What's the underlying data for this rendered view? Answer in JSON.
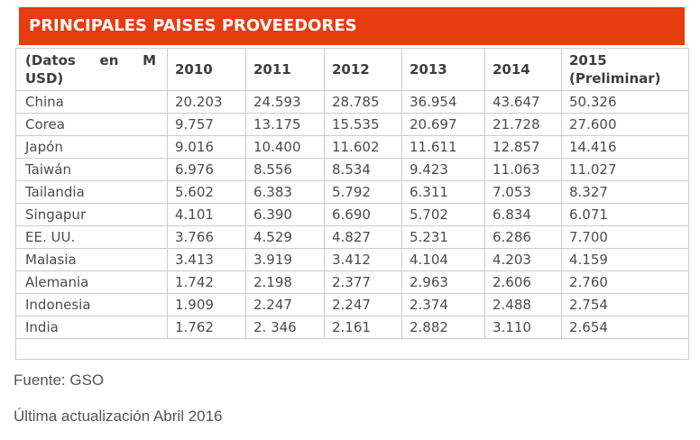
{
  "title_bar": "PRINCIPALES PAISES PROVEEDORES",
  "chart_data": {
    "type": "table",
    "title": "PRINCIPALES PAISES PROVEEDORES",
    "unit_label": "(Datos en M USD)",
    "unit_label_lines": [
      "(Datos en M",
      "USD)"
    ],
    "columns": [
      "2010",
      "2011",
      "2012",
      "2013",
      "2014",
      "2015 (Preliminar)"
    ],
    "rows": [
      {
        "country": "China",
        "values": [
          "20.203",
          "24.593",
          "28.785",
          "36.954",
          "43.647",
          "50.326"
        ]
      },
      {
        "country": "Corea",
        "values": [
          "9.757",
          "13.175",
          "15.535",
          "20.697",
          "21.728",
          "27.600"
        ]
      },
      {
        "country": "Japón",
        "values": [
          "9.016",
          "10.400",
          "11.602",
          "11.611",
          "12.857",
          "14.416"
        ]
      },
      {
        "country": "Taiwán",
        "values": [
          "6.976",
          "8.556",
          "8.534",
          "9.423",
          "11.063",
          "11.027"
        ]
      },
      {
        "country": "Tailandia",
        "values": [
          "5.602",
          "6.383",
          "5.792",
          "6.311",
          "7.053",
          "8.327"
        ]
      },
      {
        "country": "Singapur",
        "values": [
          "4.101",
          "6.390",
          "6.690",
          "5.702",
          "6.834",
          "6.071"
        ]
      },
      {
        "country": "EE. UU.",
        "values": [
          "3.766",
          "4.529",
          "4.827",
          "5.231",
          "6.286",
          "7.700"
        ]
      },
      {
        "country": "Malasia",
        "values": [
          "3.413",
          "3.919",
          "3.412",
          "4.104",
          "4.203",
          "4.159"
        ]
      },
      {
        "country": "Alemania",
        "values": [
          "1.742",
          "2.198",
          "2.377",
          "2.963",
          "2.606",
          "2.760"
        ]
      },
      {
        "country": "Indonesia",
        "values": [
          "1.909",
          "2.247",
          "2.247",
          "2.374",
          "2.488",
          "2.754"
        ]
      },
      {
        "country": "India",
        "values": [
          "1.762",
          "2. 346",
          "2.161",
          "2.882",
          "3.110",
          "2.654"
        ]
      }
    ]
  },
  "footer": {
    "source": "Fuente: GSO",
    "last_update": "Última actualización Abril 2016"
  },
  "colors": {
    "accent": "#E63C0F",
    "border": "#CBCBCB",
    "header_text": "#3D3D3D",
    "body_text": "#4C4C4C",
    "footer_text": "#545454"
  }
}
